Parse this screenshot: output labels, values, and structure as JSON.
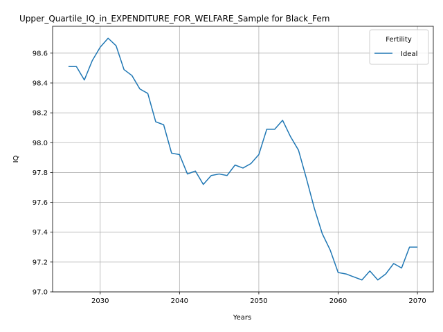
{
  "chart_data": {
    "type": "line",
    "title": "Upper_Quartile_IQ_in_EXPENDITURE_FOR_WELFARE_Sample for Black_Fem",
    "xlabel": "Years",
    "ylabel": "IQ",
    "xlim": [
      2024,
      2072
    ],
    "ylim": [
      97.0,
      98.78
    ],
    "xticks": [
      2030,
      2040,
      2050,
      2060,
      2070
    ],
    "yticks": [
      97.0,
      97.2,
      97.4,
      97.6,
      97.8,
      98.0,
      98.2,
      98.4,
      98.6
    ],
    "grid": true,
    "legend": {
      "title": "Fertility",
      "position": "top-right"
    },
    "series": [
      {
        "name": "Ideal",
        "color": "#1f77b4",
        "x": [
          2026,
          2027,
          2028,
          2029,
          2030,
          2031,
          2032,
          2033,
          2034,
          2035,
          2036,
          2037,
          2038,
          2039,
          2040,
          2041,
          2042,
          2043,
          2044,
          2045,
          2046,
          2047,
          2048,
          2049,
          2050,
          2051,
          2052,
          2053,
          2054,
          2055,
          2056,
          2057,
          2058,
          2059,
          2060,
          2061,
          2062,
          2063,
          2064,
          2065,
          2066,
          2067,
          2068,
          2069,
          2070
        ],
        "y": [
          98.51,
          98.51,
          98.42,
          98.55,
          98.64,
          98.7,
          98.65,
          98.49,
          98.45,
          98.36,
          98.33,
          98.14,
          98.12,
          97.93,
          97.92,
          97.79,
          97.81,
          97.72,
          97.78,
          97.79,
          97.78,
          97.85,
          97.83,
          97.86,
          97.92,
          98.09,
          98.09,
          98.15,
          98.04,
          97.95,
          97.76,
          97.56,
          97.39,
          97.28,
          97.13,
          97.12,
          97.1,
          97.08,
          97.14,
          97.08,
          97.12,
          97.19,
          97.16,
          97.3,
          97.3
        ]
      }
    ]
  }
}
